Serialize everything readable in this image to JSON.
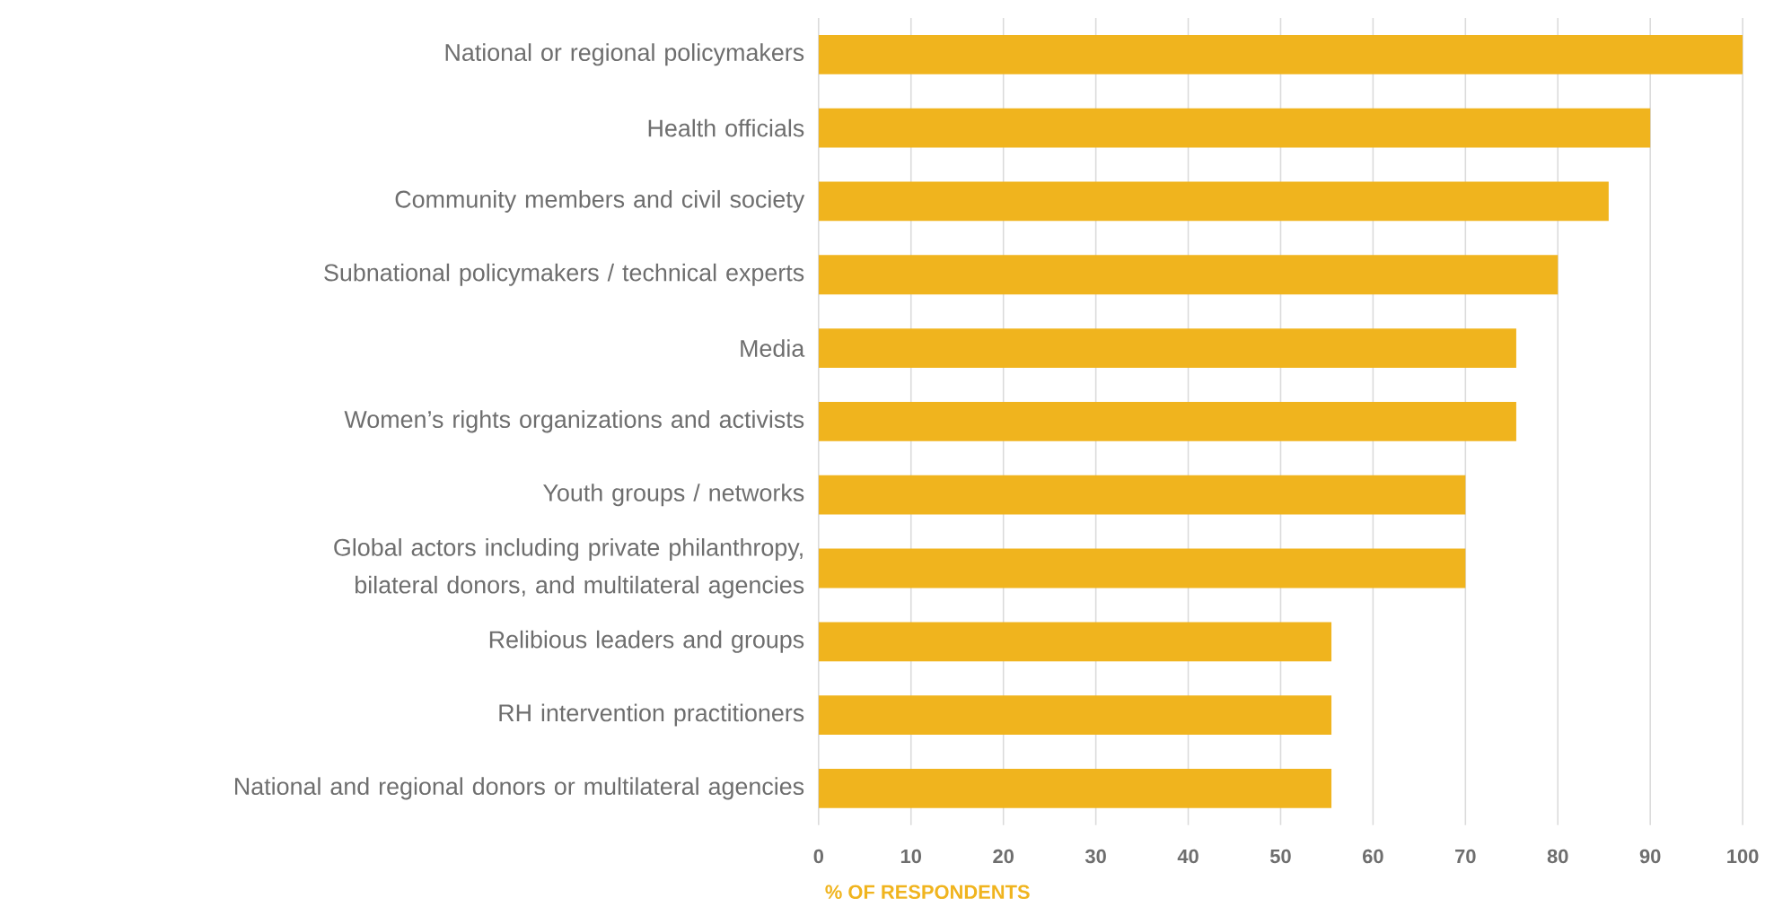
{
  "chart_data": {
    "type": "bar",
    "orientation": "horizontal",
    "xlabel": "% OF RESPONDENTS",
    "categories": [
      "National or regional policymakers",
      "Health officials",
      "Community members and civil society",
      "Subnational policymakers / technical experts",
      "Media",
      "Women’s rights organizations and activists",
      "Youth groups / networks",
      "Global actors including private philanthropy, bilateral donors,  and multilateral agencies",
      "Relibious leaders and groups",
      "RH intervention practitioners",
      "National and regional donors or multilateral agencies"
    ],
    "values": [
      100,
      90,
      85.5,
      80,
      75.5,
      75.5,
      70,
      70,
      55.5,
      55.5,
      55.5
    ],
    "color": "#f0b41e",
    "xlim": [
      0,
      100
    ],
    "xticks": [
      0,
      10,
      20,
      30,
      40,
      50,
      60,
      70,
      80,
      90,
      100
    ],
    "grid": "x"
  }
}
